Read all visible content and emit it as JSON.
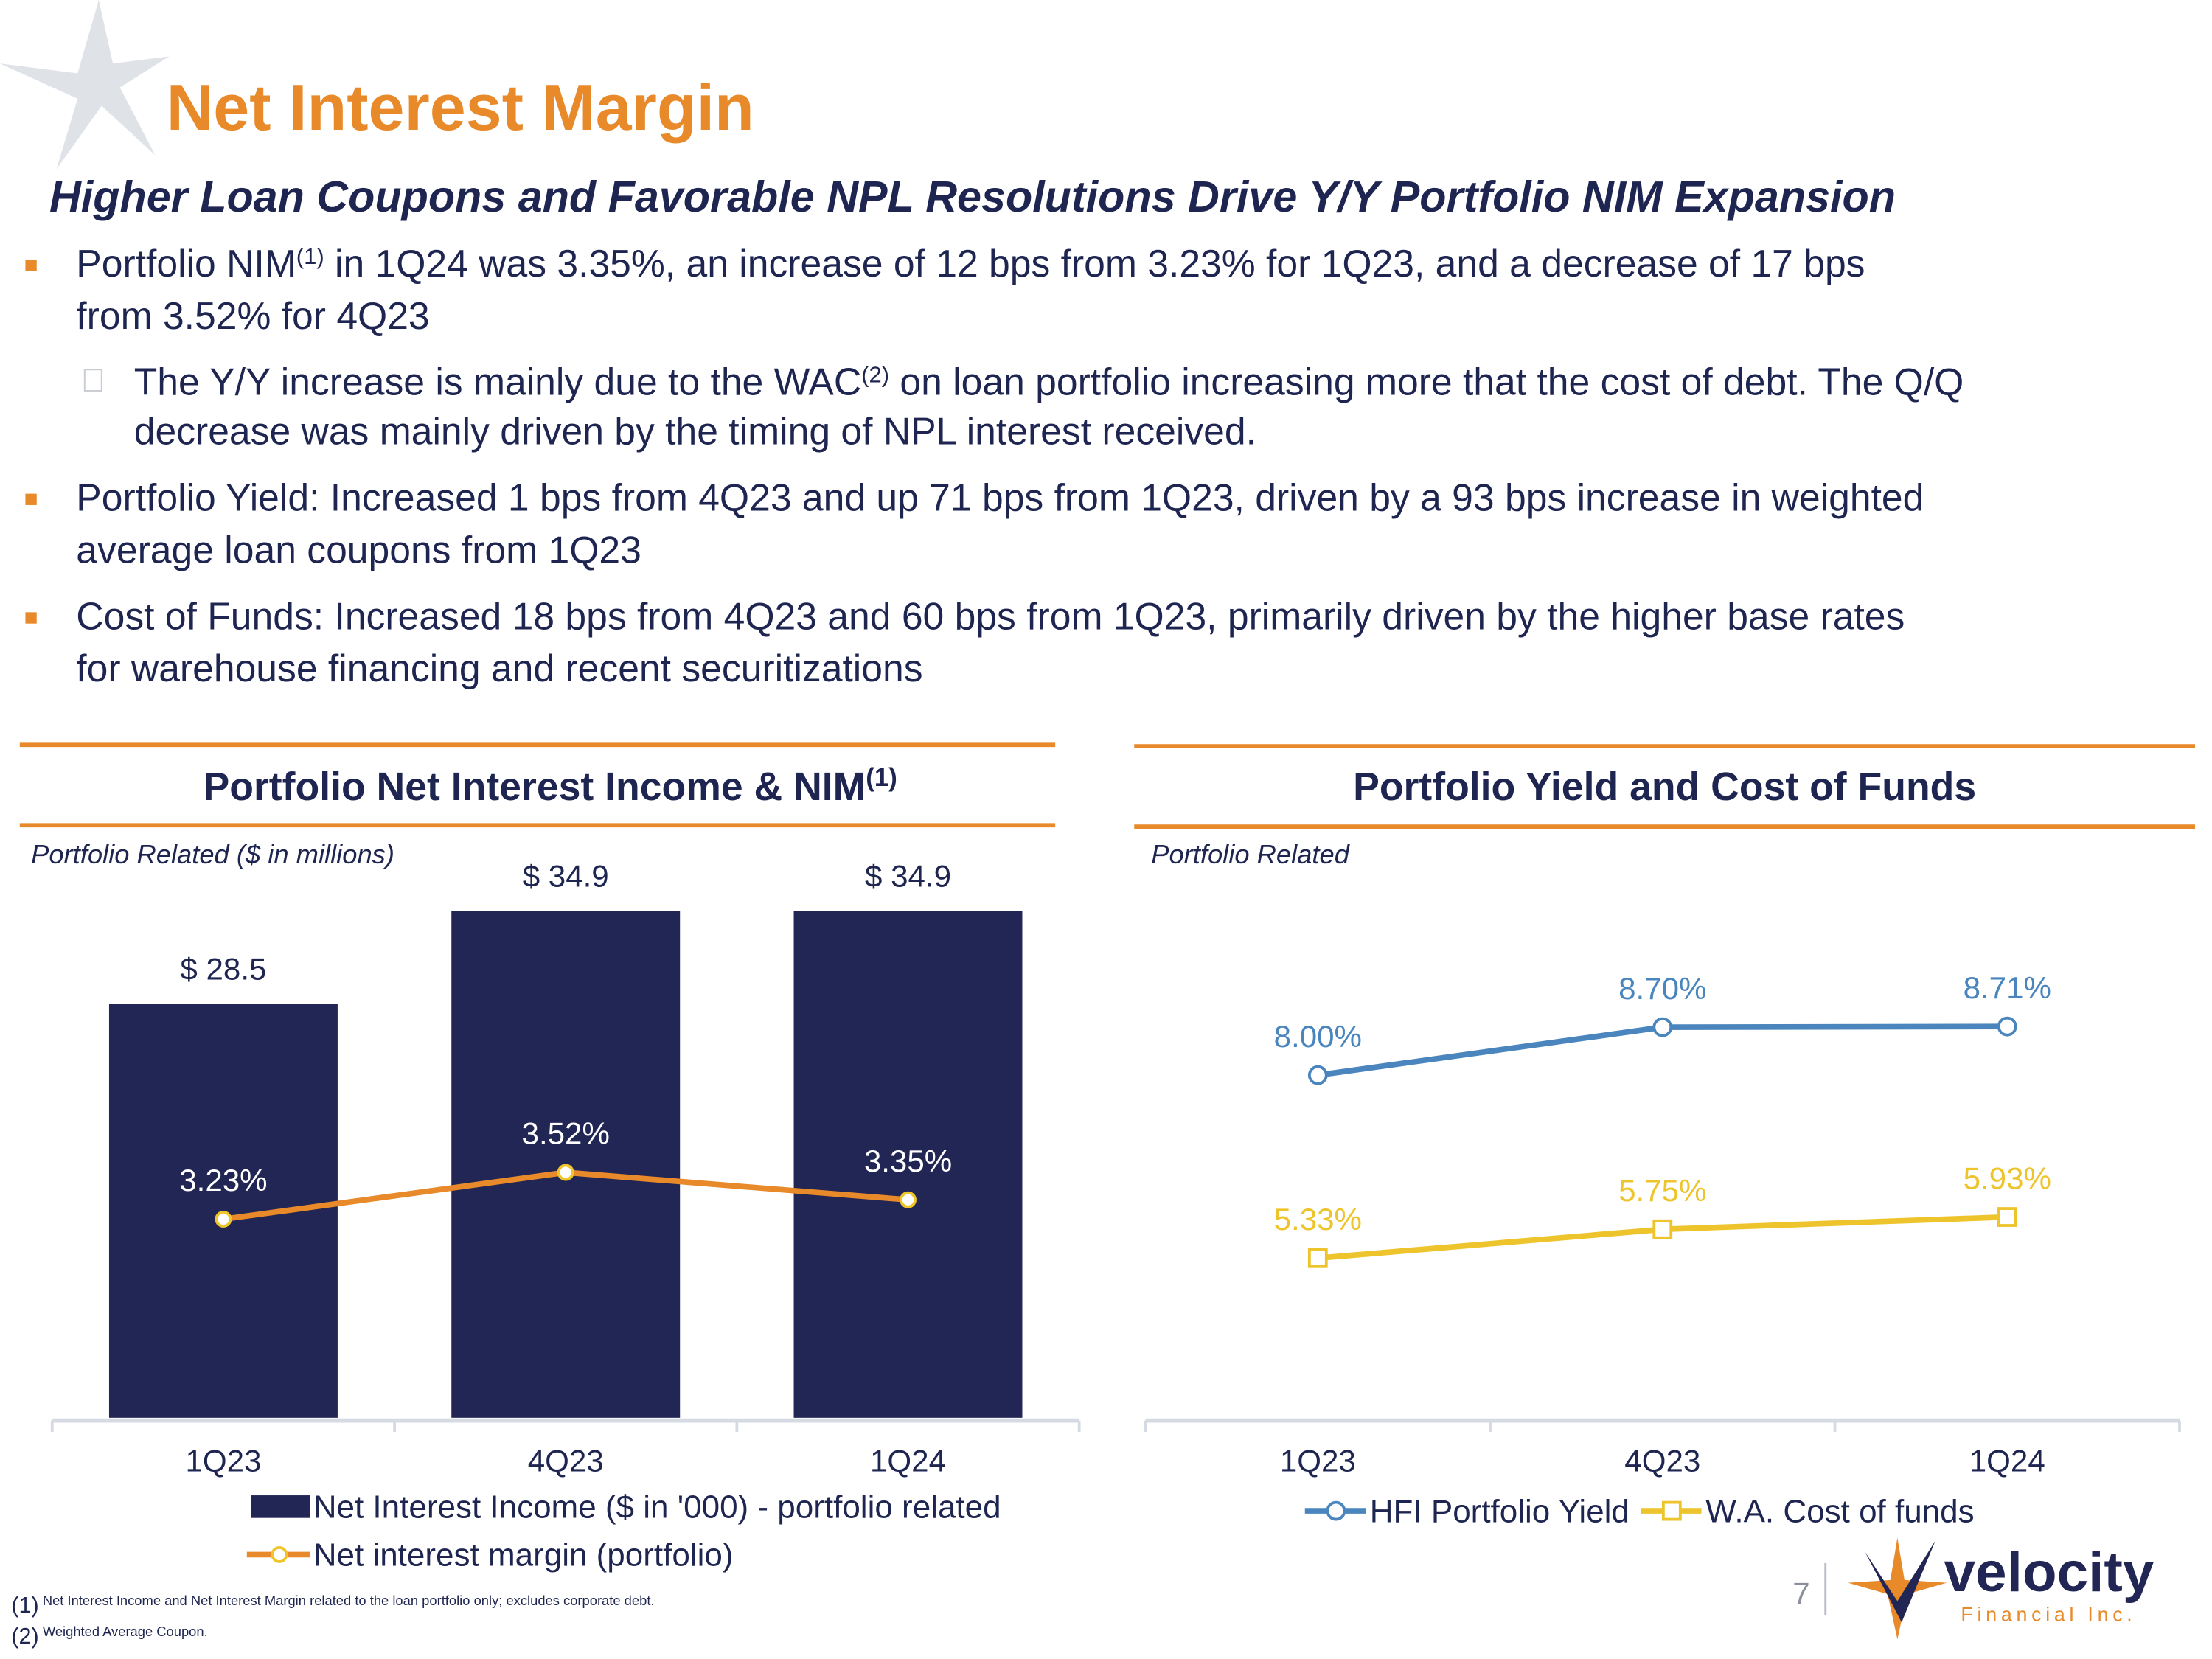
{
  "title": "Net Interest Margin",
  "subtitle": "Higher Loan Coupons and Favorable NPL Resolutions Drive Y/Y Portfolio NIM Expansion",
  "bullets": [
    {
      "lines": [
        [
          "Portfolio NIM",
          "(1)",
          " in 1Q24 was 3.35%, an increase of 12 bps from 3.23% for 1Q23, and a decrease of 17 bps"
        ],
        [
          "from 3.52% for 4Q23"
        ]
      ],
      "sub": [
        {
          "lines": [
            [
              "The Y/Y increase is mainly due to the WAC",
              "(2)",
              " on loan portfolio increasing more that the cost of debt. The Q/Q"
            ],
            [
              "decrease was mainly driven by the timing of NPL interest received."
            ]
          ]
        }
      ]
    },
    {
      "lines": [
        [
          "Portfolio Yield: Increased 1 bps from 4Q23 and up 71 bps from 1Q23, driven by a 93 bps increase in weighted"
        ],
        [
          "average loan coupons from 1Q23"
        ]
      ],
      "sub": []
    },
    {
      "lines": [
        [
          "Cost of Funds: Increased 18 bps from 4Q23 and 60 bps from 1Q23, primarily driven by the higher base rates"
        ],
        [
          "for warehouse financing and recent securitizations"
        ]
      ],
      "sub": []
    }
  ],
  "chart_data": [
    {
      "type": "bar",
      "title": "Portfolio Net Interest Income & NIM",
      "title_note": "(1)",
      "subtitle": "Portfolio Related ($ in millions)",
      "categories": [
        "1Q23",
        "4Q23",
        "1Q24"
      ],
      "ylim": [
        0,
        40
      ],
      "y2lim": [
        2,
        5.6
      ],
      "legend": "bottom",
      "series": [
        {
          "name": "Net Interest Income ($ in '000) - portfolio related",
          "type": "bar",
          "color": "#212654",
          "values": [
            28.5,
            34.9,
            34.9
          ],
          "value_labels": [
            "$ 28.5",
            "$ 34.9",
            "$ 34.9"
          ]
        },
        {
          "name": "Net interest margin (portfolio)",
          "type": "line",
          "axis": "y2",
          "color": "#e8892a",
          "marker": "circle",
          "values": [
            3.23,
            3.52,
            3.35
          ],
          "value_labels": [
            "3.23%",
            "3.52%",
            "3.35%"
          ]
        }
      ]
    },
    {
      "type": "line",
      "title": "Portfolio Yield and Cost of Funds",
      "subtitle": "Portfolio Related",
      "categories": [
        "1Q23",
        "4Q23",
        "1Q24"
      ],
      "ylim": [
        3,
        10
      ],
      "legend": "bottom",
      "series": [
        {
          "name": "HFI Portfolio Yield",
          "type": "line",
          "color": "#4a86bd",
          "marker": "circle",
          "values": [
            8.0,
            8.7,
            8.71
          ],
          "value_labels": [
            "8.00%",
            "8.70%",
            "8.71%"
          ]
        },
        {
          "name": "W.A. Cost of funds",
          "type": "line",
          "color": "#eec42c",
          "marker": "square",
          "values": [
            5.33,
            5.75,
            5.93
          ],
          "value_labels": [
            "5.33%",
            "5.75%",
            "5.93%"
          ]
        }
      ]
    }
  ],
  "footnotes": [
    [
      "(1)",
      " Net Interest Income and Net Interest Margin related to the loan portfolio only; excludes corporate debt."
    ],
    [
      "(2)",
      " Weighted Average Coupon."
    ]
  ],
  "page_number": "7",
  "logo": {
    "name": "velocity",
    "tagline": "Financial Inc."
  }
}
